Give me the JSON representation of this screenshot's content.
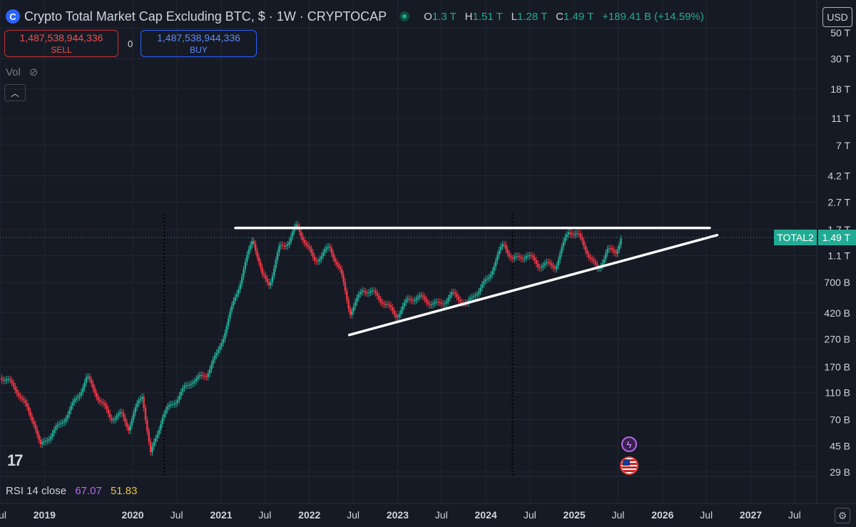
{
  "header": {
    "title": "Crypto Total Market Cap Excluding BTC, $ · 1W · CRYPTOCAP",
    "logo_glyph": "C",
    "ohlc": [
      {
        "k": "O",
        "v": "1.3 T"
      },
      {
        "k": "H",
        "v": "1.51 T"
      },
      {
        "k": "L",
        "v": "1.28 T"
      },
      {
        "k": "C",
        "v": "1.49 T"
      }
    ],
    "change": "+189.41 B (+14.59%)"
  },
  "trade": {
    "sell_price": "1,487,538,944,336",
    "sell_label": "SELL",
    "spread": "0",
    "buy_price": "1,487,538,944,336",
    "buy_label": "BUY"
  },
  "volume": {
    "label": "Vol",
    "icon": "eye-off-icon"
  },
  "currency": "USD",
  "price_tag": {
    "symbol": "TOTAL2",
    "value": "1.49 T"
  },
  "rsi": {
    "label": "RSI 14 close",
    "value1": "67.07",
    "value2": "51.83"
  },
  "branding": "17",
  "colors": {
    "up": "#22ab94",
    "down": "#f23645",
    "bg": "#161a25",
    "grid": "#232732",
    "trendline": "#ffffff"
  },
  "chart_data": {
    "type": "candlestick",
    "interval": "1W",
    "y_scale": "log",
    "yticks": [
      {
        "value": 50000000000000,
        "label": "50 T"
      },
      {
        "value": 30000000000000,
        "label": "30 T"
      },
      {
        "value": 18000000000000,
        "label": "18 T"
      },
      {
        "value": 11000000000000,
        "label": "11 T"
      },
      {
        "value": 7000000000000,
        "label": "7 T"
      },
      {
        "value": 4200000000000,
        "label": "4.2 T"
      },
      {
        "value": 2700000000000,
        "label": "2.7 T"
      },
      {
        "value": 1700000000000,
        "label": "1.7 T"
      },
      {
        "value": 1100000000000,
        "label": "1.1 T"
      },
      {
        "value": 700000000000,
        "label": "700 B"
      },
      {
        "value": 420000000000,
        "label": "420 B"
      },
      {
        "value": 270000000000,
        "label": "270 B"
      },
      {
        "value": 170000000000,
        "label": "170 B"
      },
      {
        "value": 110000000000,
        "label": "110 B"
      },
      {
        "value": 70000000000,
        "label": "70 B"
      },
      {
        "value": 45000000000,
        "label": "45 B"
      },
      {
        "value": 29000000000,
        "label": "29 B"
      }
    ],
    "xticks": [
      {
        "date": "2018-07-01",
        "label": "Jul",
        "bold": false
      },
      {
        "date": "2019-01-01",
        "label": "2019",
        "bold": true
      },
      {
        "date": "2020-01-01",
        "label": "2020",
        "bold": true
      },
      {
        "date": "2020-07-01",
        "label": "Jul",
        "bold": false
      },
      {
        "date": "2021-01-01",
        "label": "2021",
        "bold": true
      },
      {
        "date": "2021-07-01",
        "label": "Jul",
        "bold": false
      },
      {
        "date": "2022-01-01",
        "label": "2022",
        "bold": true
      },
      {
        "date": "2022-07-01",
        "label": "Jul",
        "bold": false
      },
      {
        "date": "2023-01-01",
        "label": "2023",
        "bold": true
      },
      {
        "date": "2023-07-01",
        "label": "Jul",
        "bold": false
      },
      {
        "date": "2024-01-01",
        "label": "2024",
        "bold": true
      },
      {
        "date": "2024-07-01",
        "label": "Jul",
        "bold": false
      },
      {
        "date": "2025-01-01",
        "label": "2025",
        "bold": true
      },
      {
        "date": "2025-07-01",
        "label": "Jul",
        "bold": false
      },
      {
        "date": "2026-01-01",
        "label": "2026",
        "bold": true
      },
      {
        "date": "2026-07-01",
        "label": "Jul",
        "bold": false
      },
      {
        "date": "2027-01-01",
        "label": "2027",
        "bold": true
      },
      {
        "date": "2027-07-01",
        "label": "Jul",
        "bold": false
      }
    ],
    "x_range": [
      "2018-07-01",
      "2027-10-01"
    ],
    "series": [
      {
        "type": "close_path",
        "points": [
          [
            "2018-07-01",
            150000000000
          ],
          [
            "2018-09-10",
            110000000000
          ],
          [
            "2018-11-20",
            70000000000
          ],
          [
            "2018-12-15",
            45000000000
          ],
          [
            "2019-03-01",
            60000000000
          ],
          [
            "2019-05-01",
            95000000000
          ],
          [
            "2019-06-25",
            140000000000
          ],
          [
            "2019-08-15",
            95000000000
          ],
          [
            "2019-10-01",
            75000000000
          ],
          [
            "2019-11-15",
            78000000000
          ],
          [
            "2019-12-15",
            60000000000
          ],
          [
            "2020-02-10",
            105000000000
          ],
          [
            "2020-03-15",
            40000000000
          ],
          [
            "2020-05-01",
            75000000000
          ],
          [
            "2020-07-01",
            95000000000
          ],
          [
            "2020-09-01",
            140000000000
          ],
          [
            "2020-11-01",
            150000000000
          ],
          [
            "2020-12-15",
            200000000000
          ],
          [
            "2021-01-15",
            300000000000
          ],
          [
            "2021-02-25",
            550000000000
          ],
          [
            "2021-04-10",
            950000000000
          ],
          [
            "2021-05-12",
            1450000000000
          ],
          [
            "2021-06-20",
            750000000000
          ],
          [
            "2021-07-20",
            700000000000
          ],
          [
            "2021-08-30",
            1300000000000
          ],
          [
            "2021-10-10",
            1400000000000
          ],
          [
            "2021-11-10",
            1750000000000
          ],
          [
            "2021-12-15",
            1350000000000
          ],
          [
            "2022-01-20",
            1050000000000
          ],
          [
            "2022-03-25",
            1250000000000
          ],
          [
            "2022-05-10",
            800000000000
          ],
          [
            "2022-06-18",
            430000000000
          ],
          [
            "2022-08-10",
            650000000000
          ],
          [
            "2022-11-10",
            480000000000
          ],
          [
            "2022-12-28",
            420000000000
          ],
          [
            "2023-02-15",
            530000000000
          ],
          [
            "2023-06-15",
            500000000000
          ],
          [
            "2023-08-15",
            560000000000
          ],
          [
            "2023-10-15",
            470000000000
          ],
          [
            "2023-11-15",
            600000000000
          ],
          [
            "2024-01-10",
            750000000000
          ],
          [
            "2024-03-15",
            1300000000000
          ],
          [
            "2024-04-20",
            1050000000000
          ],
          [
            "2024-06-15",
            1150000000000
          ],
          [
            "2024-08-05",
            900000000000
          ],
          [
            "2024-10-15",
            950000000000
          ],
          [
            "2024-11-25",
            1500000000000
          ],
          [
            "2024-12-10",
            1700000000000
          ],
          [
            "2025-01-20",
            1450000000000
          ],
          [
            "2025-03-10",
            1050000000000
          ],
          [
            "2025-04-08",
            880000000000
          ],
          [
            "2025-05-15",
            1250000000000
          ],
          [
            "2025-06-20",
            1100000000000
          ],
          [
            "2025-07-15",
            1490000000000
          ]
        ]
      }
    ],
    "trendlines": [
      {
        "name": "resistance",
        "from": [
          "2021-03-01",
          1750000000000
        ],
        "to": [
          "2026-07-15",
          1750000000000
        ]
      },
      {
        "name": "support",
        "from": [
          "2022-06-15",
          290000000000
        ],
        "to": [
          "2026-08-15",
          1550000000000
        ]
      }
    ],
    "event_markers": [
      "2020-05-11",
      "2024-04-20"
    ],
    "last_value": 1490000000000,
    "grid": true
  }
}
